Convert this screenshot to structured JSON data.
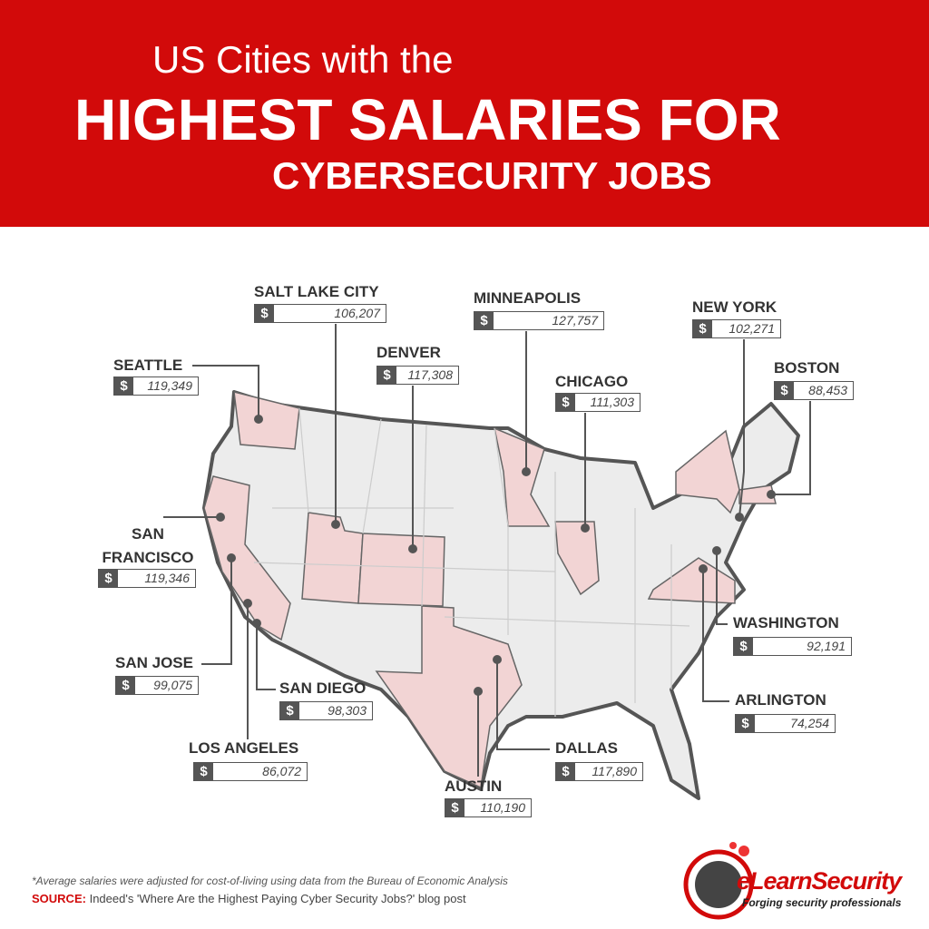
{
  "header": {
    "line1": "US Cities with the",
    "line2": "HIGHEST SALARIES FOR",
    "line3": "CYBERSECURITY JOBS"
  },
  "currency": "$",
  "cities": [
    {
      "name": "SALT LAKE CITY",
      "salary": "106,207"
    },
    {
      "name": "MINNEAPOLIS",
      "salary": "127,757"
    },
    {
      "name": "NEW YORK",
      "salary": "102,271"
    },
    {
      "name": "SEATTLE",
      "salary": "119,349"
    },
    {
      "name": "DENVER",
      "salary": "117,308"
    },
    {
      "name": "CHICAGO",
      "salary": "111,303"
    },
    {
      "name": "BOSTON",
      "salary": "88,453"
    },
    {
      "name": "SAN FRANCISCO",
      "salary": "119,346"
    },
    {
      "name": "SAN JOSE",
      "salary": "99,075"
    },
    {
      "name": "LOS ANGELES",
      "salary": "86,072"
    },
    {
      "name": "SAN DIEGO",
      "salary": "98,303"
    },
    {
      "name": "DALLAS",
      "salary": "117,890"
    },
    {
      "name": "AUSTIN",
      "salary": "110,190"
    },
    {
      "name": "WASHINGTON",
      "salary": "92,191"
    },
    {
      "name": "ARLINGTON",
      "salary": "74,254"
    }
  ],
  "footnote": "*Average salaries were adjusted for cost-of-living using data from the Bureau of Economic Analysis",
  "source": {
    "label": "SOURCE:",
    "text": "Indeed's 'Where Are the Highest Paying Cyber Security Jobs?' blog post"
  },
  "logo": {
    "name": "eLearnSecurity",
    "tagline": "Forging security professionals"
  }
}
